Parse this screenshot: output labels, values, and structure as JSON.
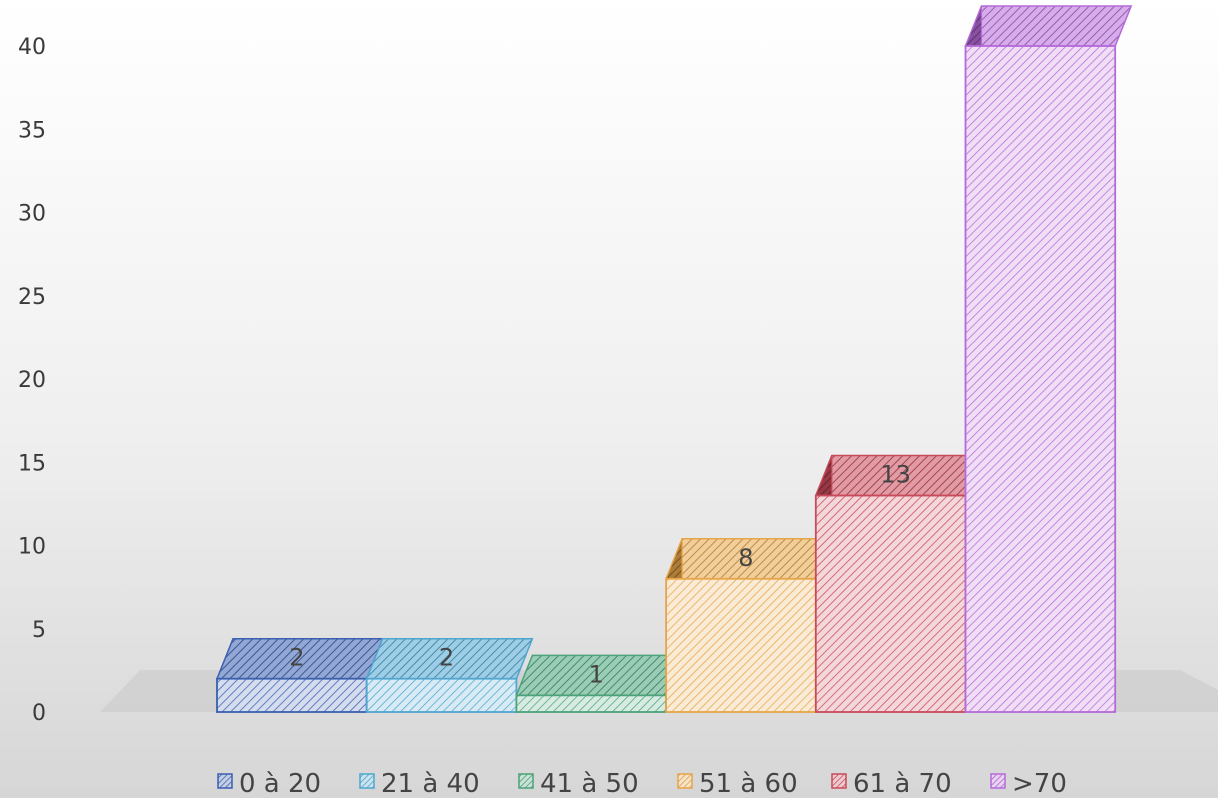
{
  "chart_data": {
    "type": "bar",
    "categories": [
      "0 à 20",
      "21 à 40",
      "41 à 50",
      "51 à 60",
      "61 à 70",
      ">70"
    ],
    "values": [
      2,
      2,
      1,
      8,
      13,
      40
    ],
    "title": "",
    "xlabel": "",
    "ylabel": "",
    "ylim": [
      0,
      40
    ],
    "yticks": [
      0,
      5,
      10,
      15,
      20,
      25,
      30,
      35,
      40
    ],
    "grid": false,
    "legend": "bottom",
    "style": "3d-column-hatched",
    "colors": [
      "#3a5fb0",
      "#4fa6d0",
      "#4aa37a",
      "#e6a548",
      "#c94a5a",
      "#b56ad8"
    ]
  }
}
